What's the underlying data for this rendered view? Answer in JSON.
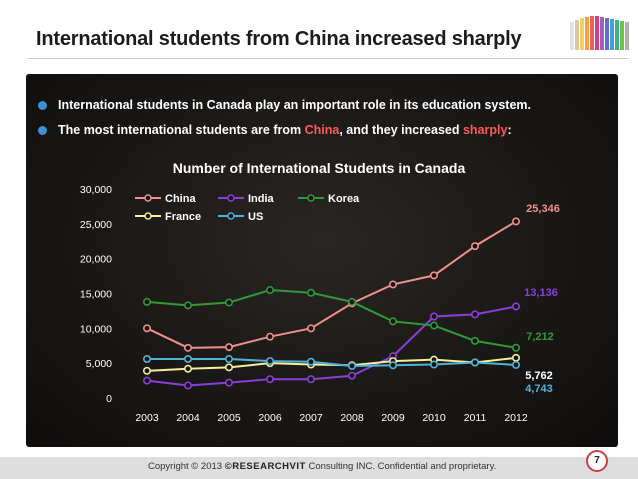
{
  "slide": {
    "title": "International students from China increased sharply",
    "bullets": [
      {
        "text": "International students in Canada play an important role in its education system."
      },
      {
        "pre": "The most international students are from ",
        "hl1": "China",
        "mid": ", and they increased ",
        "hl2": "sharply",
        "post": ":"
      }
    ],
    "page_number": "7",
    "footer": {
      "pre": "Copyright © 2013 ",
      "brand": "©RESEARCHVIT",
      "post": " Consulting INC. Confidential and proprietary."
    }
  },
  "colors": {
    "China": "#f0908c",
    "India": "#8b3fd6",
    "Korea": "#2f9a3a",
    "France": "#f3ef9a",
    "US": "#4fb3d9",
    "bullet": "#3d8fd6",
    "highlight": "#ff5a5a"
  },
  "chart_data": {
    "type": "line",
    "title": "Number of International Students in Canada",
    "xlabel": "",
    "ylabel": "",
    "x": [
      2003,
      2004,
      2005,
      2006,
      2007,
      2008,
      2009,
      2010,
      2011,
      2012
    ],
    "ylim": [
      0,
      30000
    ],
    "yticks": [
      "0",
      "5,000",
      "10,000",
      "15,000",
      "20,000",
      "25,000",
      "30,000"
    ],
    "legend_position": "top-left",
    "series": [
      {
        "name": "China",
        "values": [
          10000,
          7200,
          7300,
          8800,
          10000,
          13600,
          16300,
          17600,
          21800,
          25346
        ]
      },
      {
        "name": "India",
        "values": [
          2500,
          1800,
          2200,
          2700,
          2700,
          3200,
          6000,
          11700,
          12000,
          13136
        ]
      },
      {
        "name": "Korea",
        "values": [
          13800,
          13300,
          13700,
          15500,
          15100,
          13800,
          11000,
          10400,
          8200,
          7212
        ]
      },
      {
        "name": "France",
        "values": [
          3900,
          4200,
          4400,
          5000,
          4800,
          4700,
          5300,
          5500,
          5100,
          5762
        ]
      },
      {
        "name": "US",
        "values": [
          5600,
          5600,
          5600,
          5300,
          5200,
          4600,
          4700,
          4800,
          5100,
          4743
        ]
      }
    ],
    "end_labels": [
      {
        "series": "China",
        "text": "25,346"
      },
      {
        "series": "India",
        "text": "13,136"
      },
      {
        "series": "Korea",
        "text": "7,212"
      },
      {
        "series": "France",
        "text": "5,762"
      },
      {
        "series": "US",
        "text": "4,743"
      }
    ]
  }
}
